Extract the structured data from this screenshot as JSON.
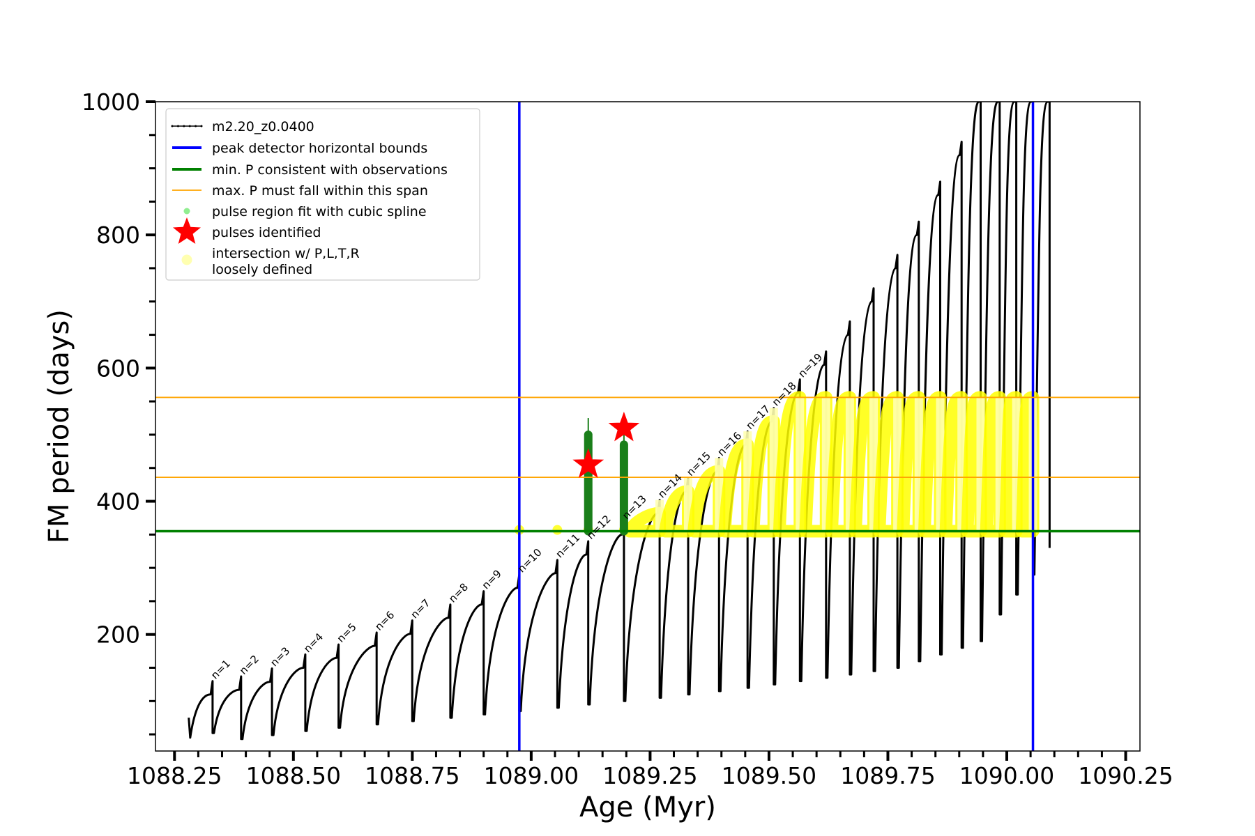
{
  "colors": {
    "track": "#000000",
    "bounds": "#0000ff",
    "min_p": "#008000",
    "max_p": "#ffa500",
    "spline": "#90ee90",
    "pulse_fit": "#1a7f1a",
    "star": "#ff0000",
    "intersection": "#ffff00",
    "intersection_faint": "#ffffb0"
  },
  "chart_data": {
    "type": "line",
    "xlabel": "Age (Myr)",
    "ylabel": "FM period (days)",
    "xlim": [
      1088.21,
      1090.28
    ],
    "ylim": [
      25,
      1000
    ],
    "x_ticks": [
      "1088.25",
      "1088.50",
      "1088.75",
      "1089.00",
      "1089.25",
      "1089.50",
      "1089.75",
      "1090.00",
      "1090.25"
    ],
    "y_ticks": [
      "200",
      "400",
      "600",
      "800",
      "1000"
    ],
    "legend_position": "upper left",
    "legend": [
      {
        "key": "track",
        "label": "m2.20_z0.0400"
      },
      {
        "key": "bounds",
        "label": "peak detector horizontal bounds"
      },
      {
        "key": "min_p",
        "label": "min. P consistent with observations"
      },
      {
        "key": "max_p",
        "label": "max. P must fall within this span"
      },
      {
        "key": "spline",
        "label": "pulse region fit with cubic spline"
      },
      {
        "key": "star",
        "label": "pulses identified"
      },
      {
        "key": "intersection",
        "label_lines": [
          "intersection w/ P,L,T,R",
          "loosely defined"
        ]
      }
    ],
    "vertical_bounds": [
      1088.975,
      1090.055
    ],
    "min_period": 355,
    "max_period_span": [
      436,
      556
    ],
    "track_start": {
      "age": 1088.28,
      "period": 75
    },
    "pulses": [
      {
        "label": "n=1",
        "age": 1088.33,
        "peak": 110,
        "min": 52
      },
      {
        "label": "n=2",
        "age": 1088.39,
        "peak": 117,
        "min": 43
      },
      {
        "label": "n=3",
        "age": 1088.455,
        "peak": 129,
        "min": 49
      },
      {
        "label": "n=4",
        "age": 1088.525,
        "peak": 150,
        "min": 55
      },
      {
        "label": "n=5",
        "age": 1088.595,
        "peak": 165,
        "min": 60
      },
      {
        "label": "n=6",
        "age": 1088.675,
        "peak": 183,
        "min": 65
      },
      {
        "label": "n=7",
        "age": 1088.75,
        "peak": 201,
        "min": 70
      },
      {
        "label": "n=8",
        "age": 1088.83,
        "peak": 225,
        "min": 75
      },
      {
        "label": "n=9",
        "age": 1088.9,
        "peak": 245,
        "min": 80
      },
      {
        "label": "n=10",
        "age": 1088.975,
        "peak": 270,
        "min": 85
      },
      {
        "label": "n=11",
        "age": 1089.055,
        "peak": 292,
        "min": 90
      },
      {
        "label": "n=12",
        "age": 1089.12,
        "peak": 320,
        "min": 95
      },
      {
        "label": "n=13",
        "age": 1089.195,
        "peak": 350,
        "min": 100
      },
      {
        "label": "n=14",
        "age": 1089.27,
        "peak": 382,
        "min": 105
      },
      {
        "label": "n=15",
        "age": 1089.33,
        "peak": 415,
        "min": 110
      },
      {
        "label": "n=16",
        "age": 1089.395,
        "peak": 445,
        "min": 115
      },
      {
        "label": "n=17",
        "age": 1089.455,
        "peak": 485,
        "min": 120
      },
      {
        "label": "n=18",
        "age": 1089.51,
        "peak": 520,
        "min": 125
      },
      {
        "label": "n=19",
        "age": 1089.565,
        "peak": 563,
        "min": 130
      },
      {
        "age": 1089.62,
        "peak": 605,
        "min": 135
      },
      {
        "age": 1089.67,
        "peak": 650,
        "min": 140
      },
      {
        "age": 1089.72,
        "peak": 700,
        "min": 145
      },
      {
        "age": 1089.77,
        "peak": 750,
        "min": 150
      },
      {
        "age": 1089.815,
        "peak": 800,
        "min": 160
      },
      {
        "age": 1089.86,
        "peak": 860,
        "min": 170
      },
      {
        "age": 1089.905,
        "peak": 920,
        "min": 180
      },
      {
        "age": 1089.945,
        "peak": 1000,
        "min": 190
      },
      {
        "age": 1089.985,
        "peak": 1000,
        "min": 230
      },
      {
        "age": 1090.02,
        "peak": 1000,
        "min": 260
      },
      {
        "age": 1090.055,
        "peak": 1000,
        "min": 290
      },
      {
        "age": 1090.09,
        "peak": 1000,
        "min": 330
      }
    ],
    "pulses_identified": [
      {
        "age": 1089.12,
        "period": 455
      },
      {
        "age": 1089.195,
        "period": 510
      }
    ],
    "spline_fit_regions": [
      {
        "age": 1089.12,
        "from": 355,
        "to": 525
      },
      {
        "age": 1089.195,
        "from": 355,
        "to": 510
      }
    ]
  }
}
